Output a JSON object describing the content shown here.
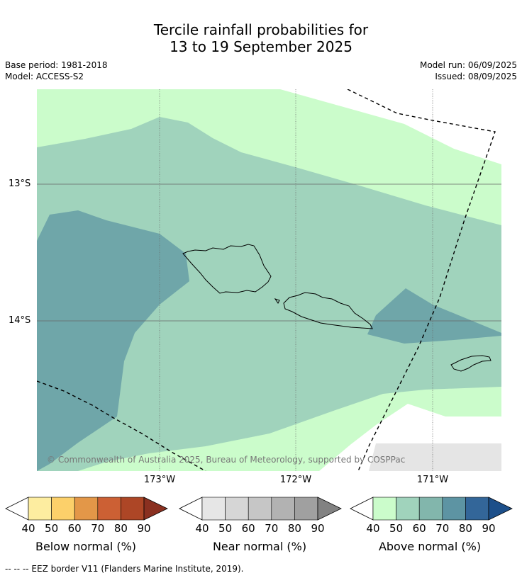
{
  "title_line1": "Tercile rainfall probabilities for",
  "title_line2": "13 to 19 September 2025",
  "base_period": "Base period: 1981-2018",
  "model": "Model: ACCESS-S2",
  "model_run": "Model run: 06/09/2025",
  "issued": "Issued: 08/09/2025",
  "lat_labels": [
    "13°S",
    "14°S"
  ],
  "lon_labels": [
    "173°W",
    "172°W",
    "171°W"
  ],
  "copyright": "© Commonwealth of Australia 2025, Bureau of Meteorology, supported by COSPPac",
  "footer": "--  --  -- EEZ border V11 (Flanders Marine Institute, 2019).",
  "colorbars": [
    {
      "label": "Below normal (%)",
      "ticks": [
        "40",
        "50",
        "60",
        "70",
        "80",
        "90"
      ],
      "colors": [
        "#fdeda0",
        "#fcd06a",
        "#e39748",
        "#cc6034",
        "#ad4626",
        "#8a3020"
      ]
    },
    {
      "label": "Near normal (%)",
      "ticks": [
        "40",
        "50",
        "60",
        "70",
        "80",
        "90"
      ],
      "colors": [
        "#e6e6e6",
        "#d6d6d6",
        "#c6c6c6",
        "#b2b2b2",
        "#a0a0a0",
        "#828282"
      ]
    },
    {
      "label": "Above normal (%)",
      "ticks": [
        "40",
        "50",
        "60",
        "70",
        "80",
        "90"
      ],
      "colors": [
        "#cbfccb",
        "#a0d3bc",
        "#82b6ac",
        "#5d94a3",
        "#336699",
        "#1c4f8a"
      ]
    }
  ]
}
